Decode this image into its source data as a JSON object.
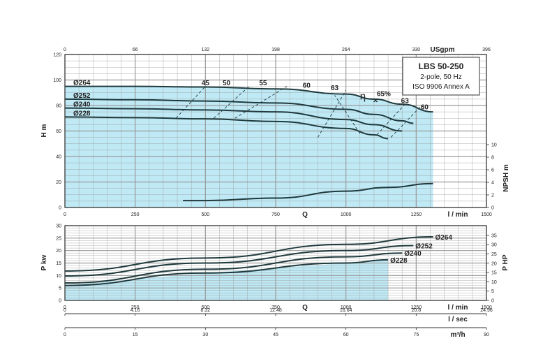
{
  "colors": {
    "fill": "#bfe9f5",
    "grid": "#9a9a9a",
    "curve": "#1f3a3d",
    "frame": "#333333"
  },
  "legend_box": {
    "title": "LBS 50-250",
    "line1": "2-pole, 50 Hz",
    "line2": "ISO 9906 Annex A"
  },
  "chart_data": [
    {
      "type": "line",
      "name": "head-chart",
      "x_top_unit": "USgpm",
      "x_top_ticks": [
        "0",
        "66",
        "132",
        "198",
        "264",
        "330",
        "396"
      ],
      "x_bottom_label": "Q",
      "x_bottom_unit": "l / min",
      "x_ticks": [
        "0",
        "250",
        "500",
        "750",
        "1000",
        "1250",
        "1500"
      ],
      "xlim": [
        0,
        1500
      ],
      "ylabel": "H m",
      "ylim": [
        0,
        120
      ],
      "y_ticks": [
        "0",
        "20",
        "40",
        "60",
        "80",
        "100",
        "120"
      ],
      "y2label": "NPSH m",
      "y2_ticks": [
        "0",
        "2",
        "4",
        "6",
        "8",
        "10"
      ],
      "y2lim": [
        0,
        10
      ],
      "shaded_region": {
        "x_max": 1310
      },
      "series": [
        {
          "name": "Ø264",
          "x": [
            0,
            250,
            500,
            750,
            1000,
            1100,
            1200,
            1310
          ],
          "y": [
            95,
            95,
            94.5,
            93,
            89,
            85,
            81,
            75
          ]
        },
        {
          "name": "Ø252",
          "x": [
            0,
            250,
            500,
            750,
            1000,
            1100,
            1200,
            1240
          ],
          "y": [
            85,
            84.5,
            83.5,
            82,
            77,
            73,
            68,
            66
          ]
        },
        {
          "name": "Ø240",
          "x": [
            0,
            250,
            500,
            750,
            1000,
            1100,
            1200
          ],
          "y": [
            78,
            77.5,
            76.5,
            75,
            69,
            65,
            60
          ]
        },
        {
          "name": "Ø228",
          "x": [
            0,
            250,
            500,
            750,
            1000,
            1100,
            1150
          ],
          "y": [
            71,
            70.5,
            69.5,
            67.5,
            62,
            57,
            54
          ]
        }
      ],
      "npsh": {
        "x": [
          420,
          500,
          750,
          1000,
          1150,
          1310
        ],
        "y": [
          1.1,
          1.1,
          1.5,
          2.6,
          3.2,
          3.8
        ]
      },
      "efficiency_lines": [
        {
          "label": "45",
          "x": [
            395,
            500
          ],
          "y": [
            70,
            95
          ]
        },
        {
          "label": "50",
          "x": [
            530,
            655
          ],
          "y": [
            70,
            95
          ]
        },
        {
          "label": "55",
          "x": [
            605,
            790
          ],
          "y": [
            70,
            95
          ]
        },
        {
          "label": "60",
          "x": [
            900,
            1000
          ],
          "y": [
            55,
            92
          ]
        },
        {
          "label": "63",
          "x": [
            1050,
            960
          ],
          "y": [
            58,
            88
          ]
        },
        {
          "label": "63",
          "x": [
            1110,
            1210
          ],
          "y": [
            57,
            81
          ]
        },
        {
          "label": "60",
          "x": [
            1160,
            1265
          ],
          "y": [
            55,
            79
          ]
        }
      ],
      "efficiency_labels": [
        {
          "text": "45",
          "x": 500,
          "y": 96
        },
        {
          "text": "50",
          "x": 575,
          "y": 96
        },
        {
          "text": "55",
          "x": 705,
          "y": 96
        },
        {
          "text": "60",
          "x": 860,
          "y": 94
        },
        {
          "text": "63",
          "x": 960,
          "y": 92
        },
        {
          "text": "63",
          "x": 1210,
          "y": 82
        },
        {
          "text": "60",
          "x": 1280,
          "y": 77
        }
      ],
      "best_efficiency": {
        "symbol": "η",
        "label": "65%",
        "x": 1105,
        "y": 84
      }
    },
    {
      "type": "line",
      "name": "power-chart",
      "x_bottom_label": "Q",
      "x_bottom_unit": "l / min",
      "x_ticks": [
        "0",
        "250",
        "500",
        "750",
        "1000",
        "1250",
        "1500"
      ],
      "x2_unit": "l / sec",
      "x2_ticks": [
        "0",
        "4.16",
        "8.32",
        "12.48",
        "16.64",
        "20.8",
        "24.96"
      ],
      "x3_unit": "m³/h",
      "x3_ticks": [
        "0",
        "15",
        "30",
        "45",
        "60",
        "75",
        "90"
      ],
      "xlim": [
        0,
        1500
      ],
      "ylabel": "P kw",
      "ylim": [
        0,
        30
      ],
      "y_ticks": [
        "0",
        "5",
        "10",
        "15",
        "20",
        "25",
        "30"
      ],
      "y2label": "P HP",
      "y2_ticks": [
        "0",
        "5",
        "10",
        "15",
        "20",
        "25",
        "30",
        "35"
      ],
      "y2lim": [
        0,
        40.2
      ],
      "shaded_region": {
        "x_max": 1150
      },
      "series": [
        {
          "name": "Ø264",
          "x": [
            0,
            500,
            1000,
            1310
          ],
          "y": [
            11.8,
            17,
            22.5,
            25.5
          ]
        },
        {
          "name": "Ø252",
          "x": [
            0,
            500,
            1000,
            1240
          ],
          "y": [
            9.8,
            15,
            20,
            22
          ]
        },
        {
          "name": "Ø240",
          "x": [
            0,
            500,
            1000,
            1200
          ],
          "y": [
            7,
            12.5,
            17.5,
            19
          ]
        },
        {
          "name": "Ø228",
          "x": [
            0,
            500,
            1000,
            1150
          ],
          "y": [
            6,
            11,
            15,
            16.3
          ]
        }
      ]
    }
  ]
}
